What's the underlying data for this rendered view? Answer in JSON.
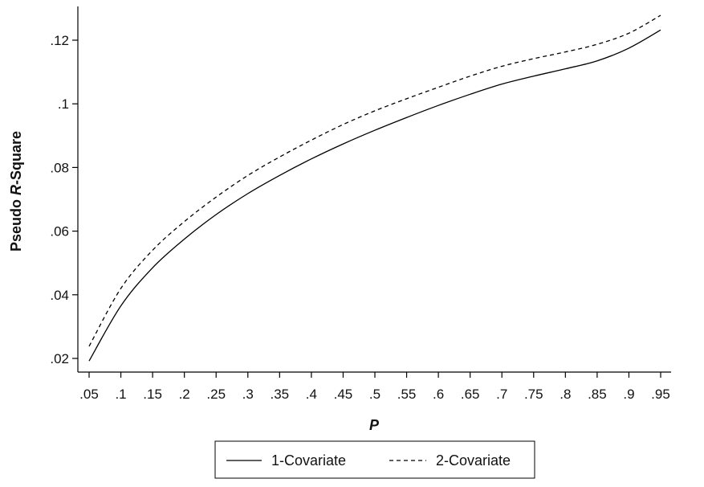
{
  "chart_data": {
    "type": "line",
    "xlabel": "P",
    "ylabel": {
      "prefix": "Pseudo ",
      "italic": "R",
      "suffix": "-Square"
    },
    "xlim": [
      0.05,
      0.95
    ],
    "ylim": [
      0.02,
      0.12
    ],
    "x_ticks": [
      0.05,
      0.1,
      0.15,
      0.2,
      0.25,
      0.3,
      0.35,
      0.4,
      0.45,
      0.5,
      0.55,
      0.6,
      0.65,
      0.7,
      0.75,
      0.8,
      0.85,
      0.9,
      0.95
    ],
    "x_tick_labels": [
      ".05",
      ".1",
      ".15",
      ".2",
      ".25",
      ".3",
      ".35",
      ".4",
      ".45",
      ".5",
      ".55",
      ".6",
      ".65",
      ".7",
      ".75",
      ".8",
      ".85",
      ".9",
      ".95"
    ],
    "y_ticks": [
      0.02,
      0.04,
      0.06,
      0.08,
      0.1,
      0.12
    ],
    "y_tick_labels": [
      ".02",
      ".04",
      ".06",
      ".08",
      ".1",
      ".12"
    ],
    "grid": false,
    "legend_position": "bottom",
    "x": [
      0.05,
      0.1,
      0.15,
      0.2,
      0.25,
      0.3,
      0.35,
      0.4,
      0.45,
      0.5,
      0.55,
      0.6,
      0.65,
      0.7,
      0.75,
      0.8,
      0.85,
      0.9,
      0.95
    ],
    "series": [
      {
        "name": "1-Covariate",
        "style": "solid",
        "color": "#000000",
        "values": [
          0.0192,
          0.0365,
          0.0485,
          0.0575,
          0.0652,
          0.0718,
          0.0775,
          0.0827,
          0.0874,
          0.0917,
          0.0957,
          0.0995,
          0.103,
          0.1062,
          0.1087,
          0.111,
          0.1135,
          0.1175,
          0.1232
        ]
      },
      {
        "name": "2-Covariate",
        "style": "dashed",
        "color": "#000000",
        "values": [
          0.0238,
          0.042,
          0.054,
          0.063,
          0.0707,
          0.0775,
          0.0833,
          0.0886,
          0.0935,
          0.0978,
          0.1016,
          0.1052,
          0.1087,
          0.1118,
          0.1142,
          0.1163,
          0.1187,
          0.1222,
          0.1278
        ]
      }
    ]
  }
}
